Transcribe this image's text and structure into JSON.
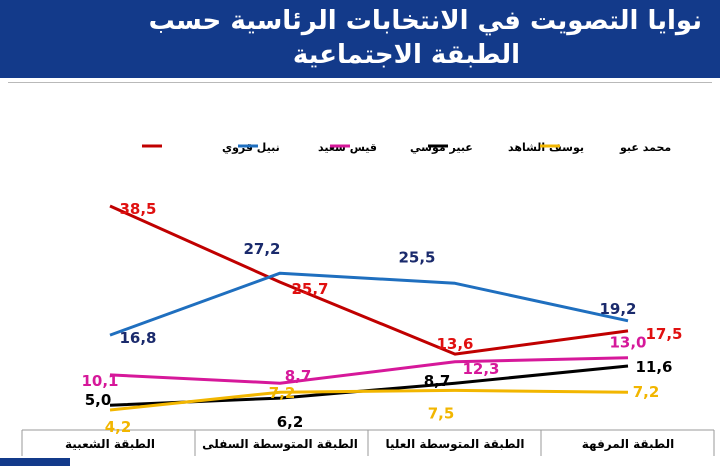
{
  "title": {
    "line1": "نوايا التصويت في الانتخابات الرئاسية حسب",
    "line2": "الطبقة الاجتماعية"
  },
  "chart_data": {
    "type": "line",
    "categories": [
      "الطبقة الشعبية",
      "الطبقة المتوسطة  السفلى",
      "الطبقة المتوسطة العليا",
      "الطبقة المرفهة"
    ],
    "series": [
      {
        "name": "نبيل قروي",
        "color": "#c00000",
        "values": [
          38.5,
          25.7,
          13.6,
          17.5
        ],
        "labels": [
          "38,5",
          "25,7",
          "13,6",
          "17,5"
        ]
      },
      {
        "name": "قيس سعيد",
        "color": "#1f6fbf",
        "values": [
          16.8,
          27.2,
          25.5,
          19.2
        ],
        "labels": [
          "16,8",
          "27,2",
          "25,5",
          "19,2"
        ]
      },
      {
        "name": "عبير موسي",
        "color": "#d6189a",
        "values": [
          10.1,
          8.7,
          12.3,
          13.0
        ],
        "labels": [
          "10,1",
          "8,7",
          "12,3",
          "13,0"
        ]
      },
      {
        "name": "يوسف الشاهد",
        "color": "#000000",
        "values": [
          5.0,
          6.2,
          8.7,
          11.6
        ],
        "labels": [
          "5,0",
          "6,2",
          "8,7",
          "11,6"
        ]
      },
      {
        "name": "محمد عبو",
        "color": "#f2b600",
        "values": [
          4.2,
          7.2,
          7.5,
          7.2
        ],
        "labels": [
          "4,2",
          "7,2",
          "7,5",
          "7,2"
        ]
      }
    ],
    "legend_position": "top",
    "grid": false
  }
}
